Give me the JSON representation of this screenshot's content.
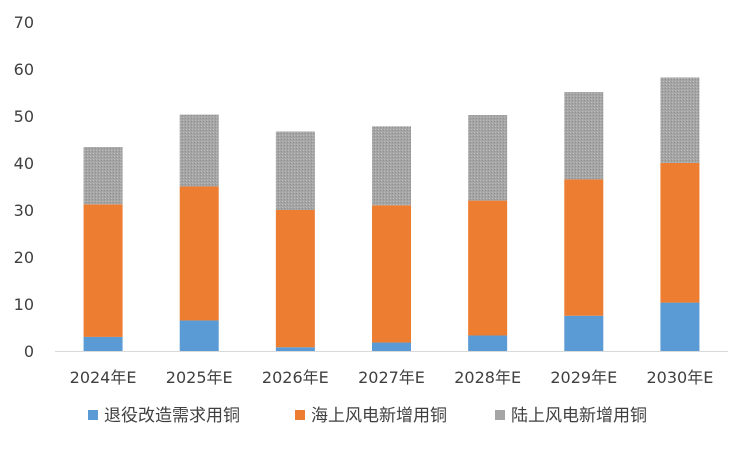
{
  "chart_data": {
    "type": "bar",
    "stacked": true,
    "categories": [
      "2024年E",
      "2025年E",
      "2026年E",
      "2027年E",
      "2028年E",
      "2029年E",
      "2030年E"
    ],
    "series": [
      {
        "name": "退役改造需求用铜",
        "color": "#5b9bd5",
        "values": [
          3.0,
          6.5,
          0.8,
          1.8,
          3.3,
          7.5,
          10.3
        ]
      },
      {
        "name": "海上风电新增用铜",
        "color": "#ed7d31",
        "values": [
          28.2,
          28.5,
          29.2,
          29.2,
          28.7,
          29.0,
          29.7
        ]
      },
      {
        "name": "陆上风电新增用铜",
        "color": "#a5a5a5",
        "values": [
          12.2,
          15.3,
          16.7,
          16.8,
          18.2,
          18.6,
          18.2
        ]
      }
    ],
    "yticks": [
      0,
      10,
      20,
      30,
      40,
      50,
      60,
      70
    ],
    "ylim": [
      0,
      70
    ],
    "grid": false,
    "legend": "bottom",
    "title": "",
    "xlabel": "",
    "ylabel": ""
  }
}
